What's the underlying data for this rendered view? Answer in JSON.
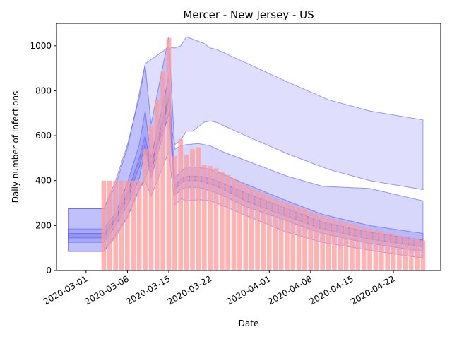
{
  "chart_data": {
    "type": "bar",
    "title": "Mercer - New Jersey - US",
    "xlabel": "Date",
    "ylabel": "Daily number of infections",
    "ylim": [
      0,
      1100
    ],
    "xlim": [
      "2020-02-25",
      "2020-04-30"
    ],
    "grid": false,
    "x_ticks": [
      "2020-03-01",
      "2020-03-08",
      "2020-03-15",
      "2020-03-22",
      "2020-04-01",
      "2020-04-08",
      "2020-04-15",
      "2020-04-22"
    ],
    "y_ticks": [
      0,
      200,
      400,
      600,
      800,
      1000
    ],
    "colors": {
      "bars": "#ff9999",
      "bands": "#6f6ff5",
      "band_edge": "#5a5af0"
    },
    "bars": {
      "dates": [
        "2020-03-04",
        "2020-03-05",
        "2020-03-06",
        "2020-03-07",
        "2020-03-08",
        "2020-03-09",
        "2020-03-10",
        "2020-03-11",
        "2020-03-12",
        "2020-03-13",
        "2020-03-14",
        "2020-03-15",
        "2020-03-16",
        "2020-03-17",
        "2020-03-18",
        "2020-03-19",
        "2020-03-20",
        "2020-03-21",
        "2020-03-22",
        "2020-03-23",
        "2020-03-24",
        "2020-03-25",
        "2020-03-26",
        "2020-03-27",
        "2020-03-28",
        "2020-03-29",
        "2020-03-30",
        "2020-03-31",
        "2020-04-01",
        "2020-04-02",
        "2020-04-03",
        "2020-04-04",
        "2020-04-05",
        "2020-04-06",
        "2020-04-07",
        "2020-04-08",
        "2020-04-09",
        "2020-04-10",
        "2020-04-11",
        "2020-04-12",
        "2020-04-13",
        "2020-04-14",
        "2020-04-15",
        "2020-04-16",
        "2020-04-17",
        "2020-04-18",
        "2020-04-19",
        "2020-04-20",
        "2020-04-21",
        "2020-04-22",
        "2020-04-23",
        "2020-04-24",
        "2020-04-25",
        "2020-04-26",
        "2020-04-27"
      ],
      "values": [
        400,
        400,
        400,
        400,
        400,
        400,
        400,
        540,
        645,
        760,
        885,
        1035,
        510,
        585,
        515,
        540,
        548,
        470,
        465,
        455,
        440,
        425,
        410,
        395,
        380,
        365,
        355,
        345,
        330,
        320,
        310,
        300,
        292,
        282,
        275,
        262,
        252,
        244,
        237,
        228,
        220,
        213,
        208,
        200,
        193,
        186,
        180,
        175,
        168,
        163,
        157,
        150,
        145,
        140,
        133
      ]
    },
    "series": [
      {
        "dates": [
          "2020-02-27",
          "2020-03-04",
          "2020-03-06",
          "2020-03-08",
          "2020-03-10",
          "2020-03-11",
          "2020-03-15",
          "2020-03-16",
          "2020-03-17",
          "2020-03-18",
          "2020-03-19",
          "2020-03-20",
          "2020-03-21",
          "2020-03-22",
          "2020-03-23",
          "2020-03-28",
          "2020-04-04",
          "2020-04-11",
          "2020-04-18",
          "2020-04-27"
        ],
        "lower": [
          85,
          85,
          160,
          240,
          365,
          410,
          690,
          560,
          580,
          620,
          620,
          640,
          660,
          665,
          660,
          600,
          520,
          450,
          400,
          360
        ],
        "upper": [
          275,
          275,
          380,
          545,
          790,
          920,
          995,
          990,
          1000,
          1040,
          1030,
          1020,
          1010,
          990,
          985,
          925,
          840,
          760,
          710,
          670
        ]
      }
    ],
    "bands": [
      {
        "dates": [
          "2020-02-27",
          "2020-03-04",
          "2020-03-06",
          "2020-03-08",
          "2020-03-10",
          "2020-03-11",
          "2020-03-12",
          "2020-03-15",
          "2020-03-16",
          "2020-03-17",
          "2020-03-18",
          "2020-03-20",
          "2020-03-22",
          "2020-03-24",
          "2020-03-28",
          "2020-04-04",
          "2020-04-10",
          "2020-04-18",
          "2020-04-27"
        ],
        "lower": [
          85,
          85,
          150,
          235,
          360,
          400,
          330,
          530,
          290,
          320,
          310,
          315,
          310,
          290,
          245,
          170,
          125,
          90,
          55
        ],
        "upper": [
          275,
          275,
          400,
          560,
          770,
          915,
          650,
          1040,
          540,
          555,
          560,
          565,
          555,
          530,
          490,
          420,
          375,
          365,
          310
        ]
      },
      {
        "dates": [
          "2020-02-27",
          "2020-03-04",
          "2020-03-06",
          "2020-03-08",
          "2020-03-10",
          "2020-03-11",
          "2020-03-12",
          "2020-03-15",
          "2020-03-16",
          "2020-03-17",
          "2020-03-18",
          "2020-03-20",
          "2020-03-22",
          "2020-03-24",
          "2020-03-28",
          "2020-04-04",
          "2020-04-10",
          "2020-04-18",
          "2020-04-27"
        ],
        "lower": [
          125,
          125,
          200,
          290,
          410,
          540,
          410,
          700,
          335,
          360,
          370,
          370,
          355,
          335,
          285,
          220,
          165,
          120,
          85
        ],
        "upper": [
          185,
          185,
          255,
          390,
          560,
          710,
          500,
          860,
          410,
          440,
          460,
          460,
          450,
          430,
          385,
          310,
          250,
          200,
          165
        ]
      },
      {
        "dates": [
          "2020-02-27",
          "2020-03-04",
          "2020-03-06",
          "2020-03-08",
          "2020-03-10",
          "2020-03-11",
          "2020-03-12",
          "2020-03-15",
          "2020-03-16",
          "2020-03-17",
          "2020-03-18",
          "2020-03-20",
          "2020-03-22",
          "2020-03-24",
          "2020-03-28",
          "2020-04-04",
          "2020-04-10",
          "2020-04-18",
          "2020-04-27"
        ],
        "lower": [
          145,
          145,
          225,
          320,
          460,
          560,
          430,
          760,
          360,
          390,
          400,
          400,
          385,
          365,
          310,
          240,
          185,
          140,
          105
        ],
        "upper": [
          165,
          165,
          235,
          345,
          500,
          600,
          460,
          780,
          380,
          405,
          420,
          420,
          410,
          390,
          345,
          275,
          215,
          170,
          135
        ]
      }
    ]
  }
}
